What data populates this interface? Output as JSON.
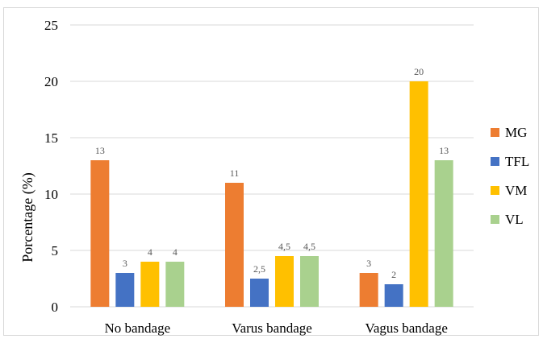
{
  "chart_data": {
    "type": "bar",
    "title": "",
    "xlabel": "",
    "ylabel": "Porcentage  (%)",
    "ylim": [
      0,
      25
    ],
    "yticks": [
      0,
      5,
      10,
      15,
      20,
      25
    ],
    "grid": "horizontal",
    "legend_position": "right",
    "categories": [
      "No bandage",
      "Varus bandage",
      "Vagus bandage"
    ],
    "series": [
      {
        "name": "MG",
        "color": "#ED7D31",
        "values": [
          13,
          11,
          3
        ],
        "labels": [
          "13",
          "11",
          "3"
        ]
      },
      {
        "name": "TFL",
        "color": "#4472C4",
        "values": [
          3,
          2.5,
          2
        ],
        "labels": [
          "3",
          "2,5",
          "2"
        ]
      },
      {
        "name": "VM",
        "color": "#FFC000",
        "values": [
          4,
          4.5,
          20
        ],
        "labels": [
          "4",
          "4,5",
          "20"
        ]
      },
      {
        "name": "VL",
        "color": "#A9D18E",
        "values": [
          4,
          4.5,
          13
        ],
        "labels": [
          "4",
          "4,5",
          "13"
        ]
      }
    ]
  }
}
